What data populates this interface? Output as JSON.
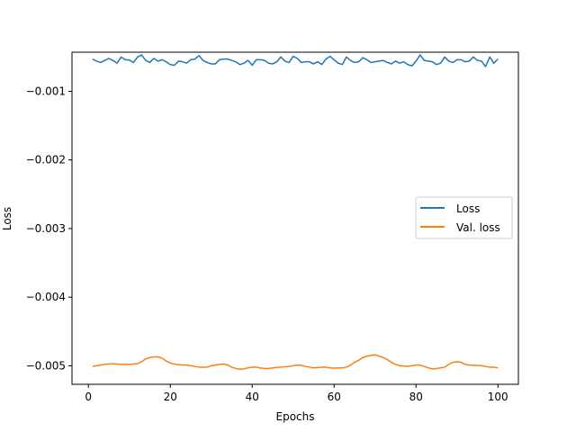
{
  "chart_data": {
    "type": "line",
    "title": "",
    "xlabel": "Epochs",
    "ylabel": "Loss",
    "xlim": [
      -4,
      105
    ],
    "ylim": [
      -0.00527,
      -0.00043
    ],
    "xticks": [
      0,
      20,
      40,
      60,
      80,
      100
    ],
    "xtick_labels": [
      "0",
      "20",
      "40",
      "60",
      "80",
      "100"
    ],
    "yticks": [
      -0.005,
      -0.004,
      -0.003,
      -0.002,
      -0.001
    ],
    "ytick_labels": [
      "−0.005",
      "−0.004",
      "−0.003",
      "−0.002",
      "−0.001"
    ],
    "grid": false,
    "legend_position": "center-right",
    "x": [
      1,
      2,
      3,
      4,
      5,
      6,
      7,
      8,
      9,
      10,
      11,
      12,
      13,
      14,
      15,
      16,
      17,
      18,
      19,
      20,
      21,
      22,
      23,
      24,
      25,
      26,
      27,
      28,
      29,
      30,
      31,
      32,
      33,
      34,
      35,
      36,
      37,
      38,
      39,
      40,
      41,
      42,
      43,
      44,
      45,
      46,
      47,
      48,
      49,
      50,
      51,
      52,
      53,
      54,
      55,
      56,
      57,
      58,
      59,
      60,
      61,
      62,
      63,
      64,
      65,
      66,
      67,
      68,
      69,
      70,
      71,
      72,
      73,
      74,
      75,
      76,
      77,
      78,
      79,
      80,
      81,
      82,
      83,
      84,
      85,
      86,
      87,
      88,
      89,
      90,
      91,
      92,
      93,
      94,
      95,
      96,
      97,
      98,
      99,
      100
    ],
    "series": [
      {
        "name": "Loss",
        "color": "#1f77b4",
        "values": [
          -0.00053,
          -0.00056,
          -0.00058,
          -0.00055,
          -0.00052,
          -0.00055,
          -0.00059,
          -0.0005,
          -0.00054,
          -0.000545,
          -0.00058,
          -0.0005,
          -0.00047,
          -0.00055,
          -0.00058,
          -0.00052,
          -0.00056,
          -0.00054,
          -0.00057,
          -0.00061,
          -0.00062,
          -0.00056,
          -0.00057,
          -0.00059,
          -0.00054,
          -0.00053,
          -0.00048,
          -0.00055,
          -0.00058,
          -0.0006,
          -0.0006,
          -0.00054,
          -0.00053,
          -0.00053,
          -0.00055,
          -0.00057,
          -0.00061,
          -0.00059,
          -0.00055,
          -0.00062,
          -0.00054,
          -0.00054,
          -0.00055,
          -0.00059,
          -0.0006,
          -0.00057,
          -0.0005,
          -0.00056,
          -0.00058,
          -0.00049,
          -0.00052,
          -0.00058,
          -0.00057,
          -0.00057,
          -0.0006,
          -0.00057,
          -0.00061,
          -0.00053,
          -0.00049,
          -0.00054,
          -0.00059,
          -0.00061,
          -0.0005,
          -0.00055,
          -0.00058,
          -0.00057,
          -0.00051,
          -0.00054,
          -0.00058,
          -0.00057,
          -0.00056,
          -0.00055,
          -0.00058,
          -0.0006,
          -0.00056,
          -0.00059,
          -0.00057,
          -0.00061,
          -0.00063,
          -0.00056,
          -0.00047,
          -0.00055,
          -0.00056,
          -0.00057,
          -0.00061,
          -0.00059,
          -0.0005,
          -0.00056,
          -0.00058,
          -0.00054,
          -0.00054,
          -0.00057,
          -0.00056,
          -0.0005,
          -0.00055,
          -0.00056,
          -0.00064,
          -0.0005,
          -0.00059,
          -0.00053
        ]
      },
      {
        "name": "Val. loss",
        "color": "#ff7f0e",
        "values": [
          -0.00501,
          -0.005,
          -0.00499,
          -0.00498,
          -0.004975,
          -0.00497,
          -0.004975,
          -0.00498,
          -0.00498,
          -0.00498,
          -0.004975,
          -0.00497,
          -0.00494,
          -0.0049,
          -0.00488,
          -0.00487,
          -0.00487,
          -0.00489,
          -0.00493,
          -0.00496,
          -0.004975,
          -0.004985,
          -0.00499,
          -0.00499,
          -0.005,
          -0.00501,
          -0.00502,
          -0.00502,
          -0.00502,
          -0.005,
          -0.00499,
          -0.00498,
          -0.004975,
          -0.00499,
          -0.00502,
          -0.00504,
          -0.00505,
          -0.005045,
          -0.00503,
          -0.00502,
          -0.00502,
          -0.00503,
          -0.00504,
          -0.00504,
          -0.00503,
          -0.005025,
          -0.00502,
          -0.005015,
          -0.00501,
          -0.005,
          -0.00499,
          -0.004995,
          -0.00501,
          -0.00502,
          -0.00503,
          -0.005025,
          -0.00502,
          -0.00502,
          -0.00503,
          -0.005035,
          -0.00503,
          -0.00503,
          -0.00502,
          -0.00499,
          -0.00495,
          -0.00492,
          -0.00488,
          -0.00486,
          -0.00485,
          -0.00484,
          -0.00486,
          -0.00488,
          -0.00491,
          -0.00495,
          -0.00498,
          -0.005,
          -0.005005,
          -0.00501,
          -0.005,
          -0.00499,
          -0.00499,
          -0.00501,
          -0.00503,
          -0.005045,
          -0.00504,
          -0.00503,
          -0.00502,
          -0.00498,
          -0.00495,
          -0.00494,
          -0.00495,
          -0.00498,
          -0.00499,
          -0.004995,
          -0.004995,
          -0.005,
          -0.00501,
          -0.00502,
          -0.00502,
          -0.00503
        ]
      }
    ]
  }
}
